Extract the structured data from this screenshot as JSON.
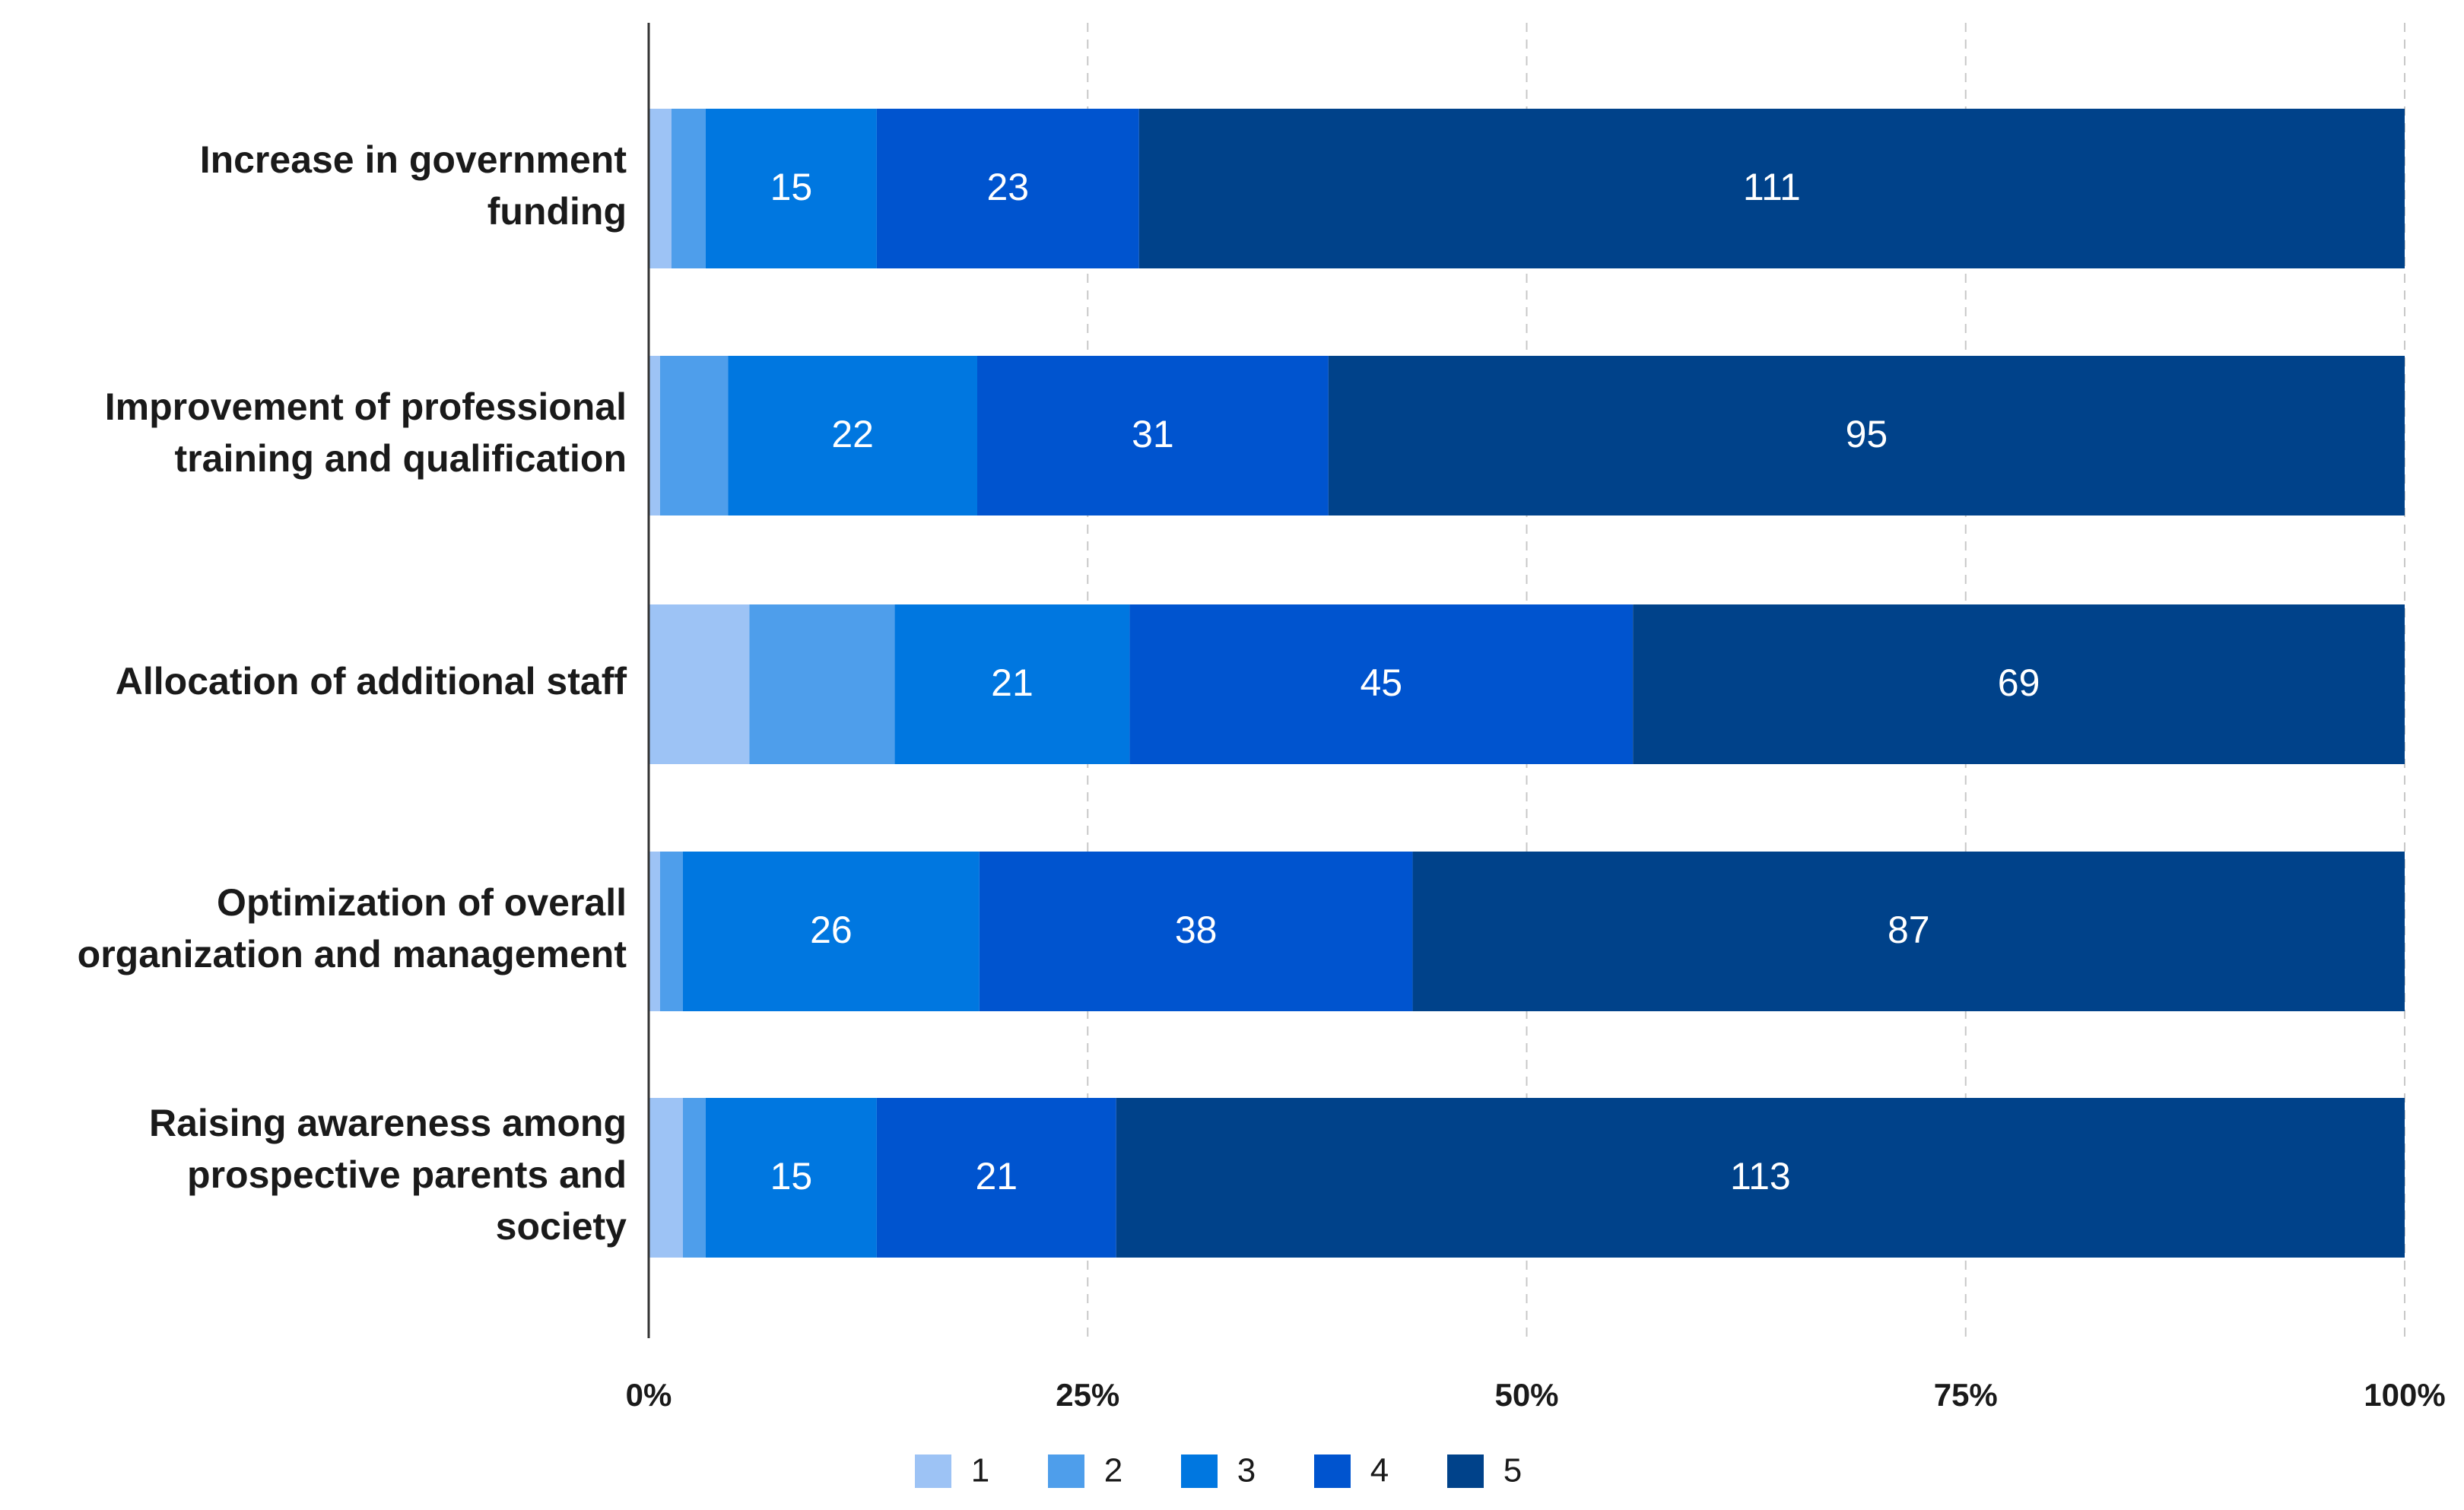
{
  "chart_data": {
    "type": "bar",
    "orientation": "horizontal",
    "stacked": "percent",
    "categories": [
      [
        "Increase in government",
        "funding"
      ],
      [
        "Improvement of professional",
        "training and qualification"
      ],
      [
        "Allocation of additional staff"
      ],
      [
        "Optimization of overall",
        "organization and management"
      ],
      [
        "Raising awareness among",
        "prospective parents and",
        "society"
      ]
    ],
    "series": [
      {
        "name": "1",
        "color": "#9dc3f5",
        "values": [
          2,
          1,
          9,
          1,
          3
        ]
      },
      {
        "name": "2",
        "color": "#4e9eeb",
        "values": [
          3,
          6,
          13,
          2,
          2
        ]
      },
      {
        "name": "3",
        "color": "#0077e0",
        "values": [
          15,
          22,
          21,
          26,
          15
        ]
      },
      {
        "name": "4",
        "color": "#0054cf",
        "values": [
          23,
          31,
          45,
          38,
          21
        ]
      },
      {
        "name": "5",
        "color": "#00428a",
        "values": [
          111,
          95,
          69,
          87,
          113
        ]
      }
    ],
    "data_labels_shown_for_series": [
      "3",
      "4",
      "5"
    ],
    "x_ticks": [
      "0%",
      "25%",
      "50%",
      "75%",
      "100%"
    ],
    "xlim": [
      0,
      100
    ],
    "grid": "vertical dashed",
    "legend_position": "bottom-center",
    "title": "",
    "xlabel": "",
    "ylabel": ""
  }
}
